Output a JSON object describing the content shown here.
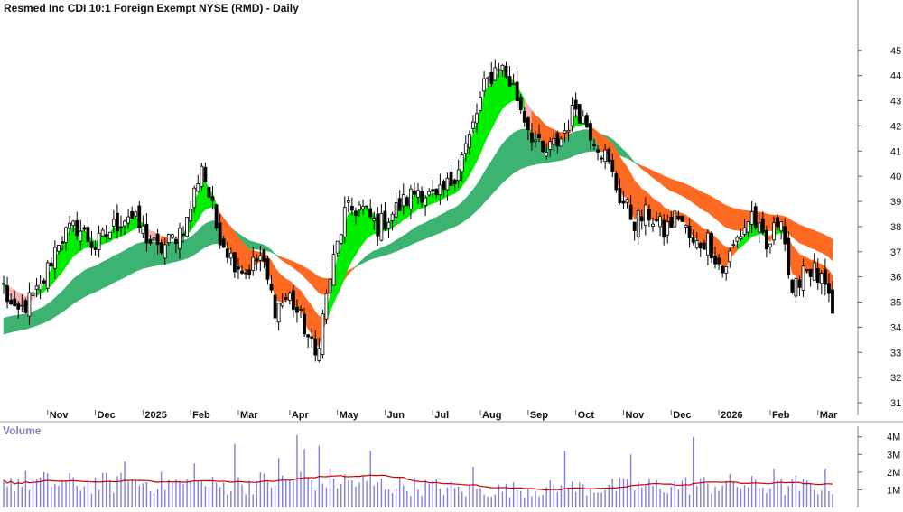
{
  "chart_data": {
    "type": "candlestick",
    "title": "Resmed Inc CDI 10:1 Foreign Exempt NYSE (RMD) - Daily",
    "price_axis": {
      "ylim": [
        30.5,
        45.9
      ],
      "ticks": [
        31,
        32,
        33,
        34,
        35,
        36,
        37,
        38,
        39,
        40,
        41,
        42,
        43,
        44,
        45
      ]
    },
    "volume_axis": {
      "title": "Volume",
      "ylim": [
        0,
        4.6
      ],
      "ticks": [
        1,
        2,
        3,
        4
      ],
      "tick_labels": [
        "1M",
        "2M",
        "3M",
        "4M"
      ]
    },
    "x_axis_months": [
      "Nov",
      "Dec",
      "2025",
      "Feb",
      "Mar",
      "Apr",
      "May",
      "Jun",
      "Jul",
      "Aug",
      "Sep",
      "Oct",
      "Nov",
      "Dec",
      "2026",
      "Feb",
      "Mar"
    ],
    "grid": false,
    "colors": {
      "up_candle": "#000000",
      "down_candle": "#000000",
      "short_band_rising": "#00ee00",
      "short_band_falling": "#ff6a22",
      "short_band_weak": "#f5b3b3",
      "long_band_rising": "#3cb371",
      "long_band_falling": "#ff6a22",
      "volume_bar": "#8080e0",
      "volume_ma": "#cc0000"
    },
    "price_anchors": [
      {
        "t": 0,
        "p": 35.6
      },
      {
        "t": 3,
        "p": 34.4
      },
      {
        "t": 10,
        "p": 35.5
      },
      {
        "t": 15,
        "p": 37.5
      },
      {
        "t": 20,
        "p": 38.0
      },
      {
        "t": 25,
        "p": 37.2
      },
      {
        "t": 30,
        "p": 38.0
      },
      {
        "t": 34,
        "p": 38.5
      },
      {
        "t": 38,
        "p": 37.8
      },
      {
        "t": 42,
        "p": 37.0
      },
      {
        "t": 46,
        "p": 37.5
      },
      {
        "t": 50,
        "p": 38.2
      },
      {
        "t": 54,
        "p": 40.5
      },
      {
        "t": 58,
        "p": 38.0
      },
      {
        "t": 62,
        "p": 36.8
      },
      {
        "t": 66,
        "p": 36.2
      },
      {
        "t": 70,
        "p": 36.8
      },
      {
        "t": 74,
        "p": 34.8
      },
      {
        "t": 78,
        "p": 35.2
      },
      {
        "t": 82,
        "p": 34.0
      },
      {
        "t": 85,
        "p": 32.8
      },
      {
        "t": 89,
        "p": 36.0
      },
      {
        "t": 93,
        "p": 38.5
      },
      {
        "t": 97,
        "p": 38.8
      },
      {
        "t": 102,
        "p": 38.0
      },
      {
        "t": 108,
        "p": 38.8
      },
      {
        "t": 113,
        "p": 39.5
      },
      {
        "t": 118,
        "p": 39.0
      },
      {
        "t": 122,
        "p": 39.8
      },
      {
        "t": 127,
        "p": 41.5
      },
      {
        "t": 131,
        "p": 43.5
      },
      {
        "t": 135,
        "p": 44.5
      },
      {
        "t": 139,
        "p": 43.5
      },
      {
        "t": 143,
        "p": 42.0
      },
      {
        "t": 147,
        "p": 40.8
      },
      {
        "t": 152,
        "p": 41.5
      },
      {
        "t": 156,
        "p": 42.8
      },
      {
        "t": 160,
        "p": 41.8
      },
      {
        "t": 164,
        "p": 40.8
      },
      {
        "t": 168,
        "p": 39.2
      },
      {
        "t": 172,
        "p": 38.2
      },
      {
        "t": 176,
        "p": 38.5
      },
      {
        "t": 180,
        "p": 37.8
      },
      {
        "t": 184,
        "p": 38.5
      },
      {
        "t": 188,
        "p": 37.2
      },
      {
        "t": 192,
        "p": 37.5
      },
      {
        "t": 196,
        "p": 36.2
      },
      {
        "t": 200,
        "p": 37.5
      },
      {
        "t": 204,
        "p": 38.5
      },
      {
        "t": 208,
        "p": 37.0
      },
      {
        "t": 212,
        "p": 38.6
      },
      {
        "t": 215,
        "p": 35.0
      },
      {
        "t": 218,
        "p": 36.5
      },
      {
        "t": 221,
        "p": 36.2
      },
      {
        "t": 224,
        "p": 35.5
      },
      {
        "t": 226,
        "p": 34.3
      }
    ],
    "volume_anchors": [
      {
        "t": 0,
        "v": 1.5
      },
      {
        "t": 20,
        "v": 1.3
      },
      {
        "t": 40,
        "v": 1.4
      },
      {
        "t": 60,
        "v": 1.2
      },
      {
        "t": 70,
        "v": 1.4
      },
      {
        "t": 80,
        "v": 1.6
      },
      {
        "t": 90,
        "v": 1.5
      },
      {
        "t": 100,
        "v": 1.3
      },
      {
        "t": 120,
        "v": 1.1
      },
      {
        "t": 126,
        "v": 0.9
      },
      {
        "t": 140,
        "v": 1.0
      },
      {
        "t": 160,
        "v": 1.1
      },
      {
        "t": 180,
        "v": 1.2
      },
      {
        "t": 200,
        "v": 1.3
      },
      {
        "t": 210,
        "v": 1.1
      },
      {
        "t": 226,
        "v": 1.2
      }
    ],
    "volume_spikes": [
      {
        "t": 33,
        "v": 2.6
      },
      {
        "t": 52,
        "v": 2.5
      },
      {
        "t": 63,
        "v": 3.6
      },
      {
        "t": 75,
        "v": 2.8
      },
      {
        "t": 80,
        "v": 4.1
      },
      {
        "t": 82,
        "v": 3.3
      },
      {
        "t": 86,
        "v": 3.5
      },
      {
        "t": 100,
        "v": 3.2
      },
      {
        "t": 128,
        "v": 2.3
      },
      {
        "t": 153,
        "v": 3.2
      },
      {
        "t": 171,
        "v": 3.0
      },
      {
        "t": 188,
        "v": 4.0
      },
      {
        "t": 210,
        "v": 2.2
      },
      {
        "t": 216,
        "v": 1.8
      },
      {
        "t": 224,
        "v": 2.2
      }
    ]
  }
}
